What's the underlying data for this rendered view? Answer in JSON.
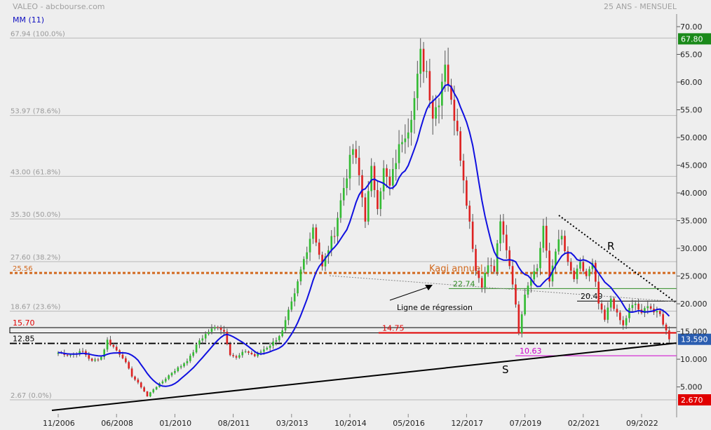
{
  "chart_data": {
    "type": "candlestick",
    "title": "VALEO - abcbourse.com",
    "period_label": "25 ANS - MENSUEL",
    "indicator_label": "MM (11)",
    "y_range": [
      2.67,
      72.5
    ],
    "y_ticks": [
      "70.00",
      "65.00",
      "60.00",
      "55.00",
      "50.000",
      "45.000",
      "40.000",
      "35.000",
      "30.000",
      "25.000",
      "20.000",
      "15.000",
      "10.000",
      "5.000"
    ],
    "y_tick_values": [
      70,
      65,
      60,
      55,
      50,
      45,
      40,
      35,
      30,
      25,
      20,
      15,
      10,
      5
    ],
    "x_labels": [
      "11/2006",
      "06/2008",
      "01/2010",
      "08/2011",
      "03/2013",
      "10/2014",
      "05/2016",
      "12/2017",
      "07/2019",
      "02/2021",
      "09/2022"
    ],
    "x_label_months": [
      0,
      19,
      38,
      57,
      76,
      95,
      114,
      133,
      152,
      171,
      190
    ],
    "fib_levels": [
      {
        "label": "67.94  (100.0%)",
        "value": 67.94
      },
      {
        "label": "53.97  (78.6%)",
        "value": 53.97
      },
      {
        "label": "43.00  (61.8%)",
        "value": 43.0
      },
      {
        "label": "35.30  (50.0%)",
        "value": 35.3
      },
      {
        "label": "27.60  (38.2%)",
        "value": 27.6
      },
      {
        "label": "18.67  (23.6%)",
        "value": 18.67
      },
      {
        "label": "2.67  (0.0%)",
        "value": 2.67
      }
    ],
    "levels": [
      {
        "label": "25.56",
        "value": 25.56,
        "color": "#d2691e"
      },
      {
        "label": "15.70",
        "value": 15.7,
        "color": "#e00000"
      },
      {
        "label": "12.85",
        "value": 12.85,
        "color": "#000000"
      },
      {
        "label": "14.75",
        "value": 14.75,
        "color": "#e00000"
      },
      {
        "label": "22.74",
        "value": 22.74,
        "color": "#2e8b22"
      },
      {
        "label": "20.49",
        "value": 20.49,
        "color": "#000000"
      },
      {
        "label": "10.63",
        "value": 10.63,
        "color": "#cc00cc"
      }
    ],
    "annotations": {
      "kagi": "Kagi annuel",
      "regression": "Ligne de régression",
      "resistance": "R",
      "support": "S"
    },
    "price_badges": [
      {
        "label": "67.80",
        "value": 67.8,
        "color": "#1a8a1a"
      },
      {
        "label": "13.590",
        "value": 13.59,
        "color": "#2a5db0"
      },
      {
        "label": "2.670",
        "value": 2.67,
        "color": "#e00000"
      }
    ],
    "close_anchors": [
      [
        0,
        11.2
      ],
      [
        4,
        10.8
      ],
      [
        8,
        11.4
      ],
      [
        11,
        9.6
      ],
      [
        14,
        10.4
      ],
      [
        16,
        13.4
      ],
      [
        18,
        12.2
      ],
      [
        21,
        10.4
      ],
      [
        24,
        7.0
      ],
      [
        27,
        5.0
      ],
      [
        29,
        3.4
      ],
      [
        31,
        4.6
      ],
      [
        34,
        6.0
      ],
      [
        37,
        7.6
      ],
      [
        40,
        8.8
      ],
      [
        43,
        10.4
      ],
      [
        46,
        13.4
      ],
      [
        49,
        15.0
      ],
      [
        52,
        16.0
      ],
      [
        54,
        15.0
      ],
      [
        56,
        11.0
      ],
      [
        58,
        10.2
      ],
      [
        61,
        11.5
      ],
      [
        64,
        10.6
      ],
      [
        67,
        11.8
      ],
      [
        70,
        13.0
      ],
      [
        73,
        15.0
      ],
      [
        75,
        18.5
      ],
      [
        77,
        21.5
      ],
      [
        79,
        26.0
      ],
      [
        81,
        30.0
      ],
      [
        83,
        34.0
      ],
      [
        85,
        29.0
      ],
      [
        86,
        26.5
      ],
      [
        88,
        30.0
      ],
      [
        90,
        33.0
      ],
      [
        92,
        38.5
      ],
      [
        94,
        43.5
      ],
      [
        96,
        48.0
      ],
      [
        98,
        43.0
      ],
      [
        100,
        35.5
      ],
      [
        102,
        44.0
      ],
      [
        104,
        38.0
      ],
      [
        106,
        44.0
      ],
      [
        108,
        41.0
      ],
      [
        110,
        46.0
      ],
      [
        112,
        50.0
      ],
      [
        114,
        52.0
      ],
      [
        116,
        57.0
      ],
      [
        118,
        64.0
      ],
      [
        120,
        62.0
      ],
      [
        122,
        54.0
      ],
      [
        124,
        57.0
      ],
      [
        126,
        64.0
      ],
      [
        128,
        56.0
      ],
      [
        130,
        52.0
      ],
      [
        132,
        42.0
      ],
      [
        134,
        35.0
      ],
      [
        136,
        26.0
      ],
      [
        138,
        23.5
      ],
      [
        140,
        27.0
      ],
      [
        142,
        26.0
      ],
      [
        144,
        34.5
      ],
      [
        146,
        30.0
      ],
      [
        148,
        24.0
      ],
      [
        150,
        15.0
      ],
      [
        152,
        22.0
      ],
      [
        154,
        25.0
      ],
      [
        156,
        26.5
      ],
      [
        158,
        34.0
      ],
      [
        160,
        24.0
      ],
      [
        162,
        30.0
      ],
      [
        164,
        32.0
      ],
      [
        166,
        27.0
      ],
      [
        168,
        24.5
      ],
      [
        170,
        27.0
      ],
      [
        172,
        25.0
      ],
      [
        174,
        27.0
      ],
      [
        176,
        20.0
      ],
      [
        178,
        17.0
      ],
      [
        180,
        21.0
      ],
      [
        182,
        18.0
      ],
      [
        184,
        16.0
      ],
      [
        186,
        19.0
      ],
      [
        188,
        20.0
      ],
      [
        190,
        18.0
      ],
      [
        192,
        20.0
      ],
      [
        194,
        18.5
      ],
      [
        196,
        18.0
      ],
      [
        199,
        13.59
      ]
    ],
    "ma_period": 11
  }
}
